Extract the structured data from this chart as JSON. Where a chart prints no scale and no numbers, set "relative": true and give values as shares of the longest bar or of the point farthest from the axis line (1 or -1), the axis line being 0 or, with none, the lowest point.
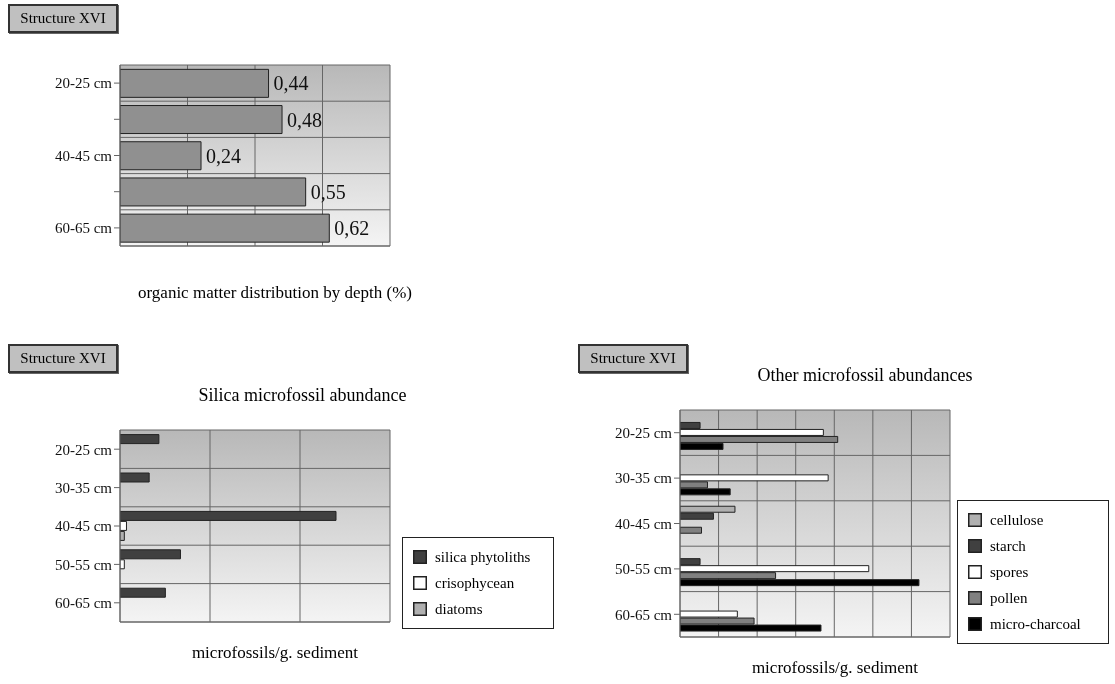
{
  "chart_data": [
    {
      "type": "bar",
      "orientation": "horizontal",
      "annotations": [
        "Structure XVI"
      ],
      "xlabel": "organic matter distribution by depth (%)",
      "categories": [
        "20-25 cm",
        null,
        "40-45 cm",
        null,
        "60-65 cm"
      ],
      "values": [
        0.44,
        0.48,
        0.24,
        0.55,
        0.62
      ],
      "value_labels": [
        "0,44",
        "0,48",
        "0,24",
        "0,55",
        "0,62"
      ],
      "color": "#909090",
      "tick_labels": "y",
      "grid": true,
      "legend": false
    },
    {
      "type": "bar",
      "orientation": "horizontal",
      "relative": true,
      "annotations": [
        "Structure XVI"
      ],
      "title": "Silica microfossil abundance",
      "xlabel": "microfossils/g. sediment",
      "categories": [
        "20-25 cm",
        "30-35 cm",
        "40-45 cm",
        "50-55 cm",
        "60-65 cm"
      ],
      "grid": true,
      "legend": "bottom right",
      "series": [
        {
          "name": "silica phytoliths",
          "color": "#404040",
          "values": [
            0.18,
            0.135,
            1,
            0.28,
            0.21
          ]
        },
        {
          "name": "crisophycean",
          "color": "#ffffff",
          "values": [
            null,
            null,
            0.03,
            0.02,
            null
          ]
        },
        {
          "name": "diatoms",
          "color": "#b0b0b0",
          "values": [
            null,
            null,
            0.02,
            null,
            null
          ]
        }
      ]
    },
    {
      "type": "bar",
      "orientation": "horizontal",
      "relative": true,
      "annotations": [
        "Structure XVI"
      ],
      "title": "Other microfossil abundances",
      "xlabel": "microfossils/g. sediment",
      "categories": [
        "20-25 cm",
        "30-35 cm",
        "40-45 cm",
        "50-55 cm",
        "60-65 cm"
      ],
      "grid": true,
      "legend": "bottom right",
      "series": [
        {
          "name": "cellulose",
          "color": "#b0b0b0",
          "values": [
            null,
            null,
            0.23,
            null,
            null
          ]
        },
        {
          "name": "starch",
          "color": "#404040",
          "values": [
            0.084,
            null,
            0.14,
            0.084,
            null
          ]
        },
        {
          "name": "spores",
          "color": "#ffffff",
          "values": [
            0.6,
            0.62,
            null,
            0.79,
            0.24
          ]
        },
        {
          "name": "pollen",
          "color": "#808080",
          "values": [
            0.66,
            0.115,
            0.09,
            0.4,
            0.31
          ]
        },
        {
          "name": "micro-charcoal",
          "color": "#000000",
          "values": [
            0.18,
            0.21,
            null,
            1,
            0.59
          ]
        }
      ]
    }
  ]
}
